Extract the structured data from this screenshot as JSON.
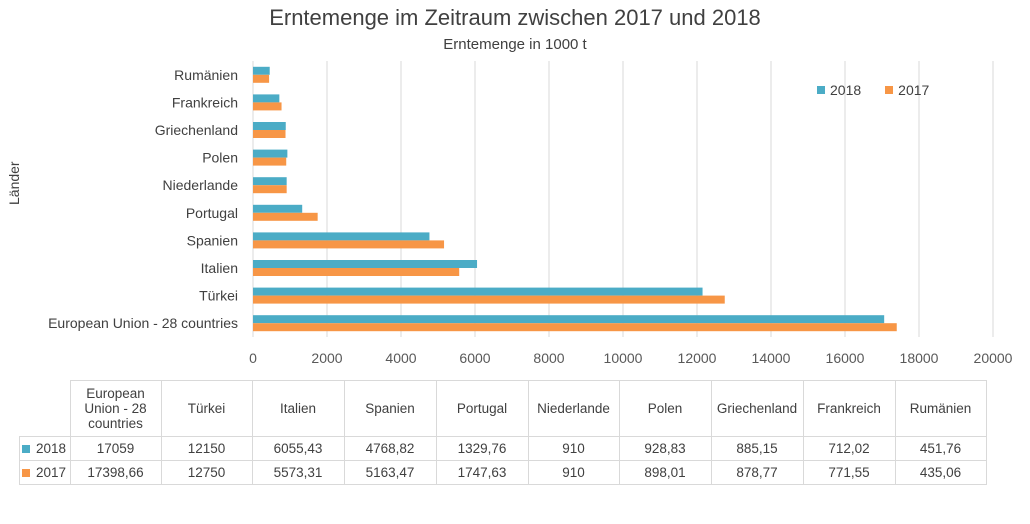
{
  "chart_data": {
    "type": "bar",
    "orientation": "horizontal",
    "title": "Erntemenge im Zeitraum zwischen 2017 und 2018",
    "subtitle": "Erntemenge in 1000 t",
    "ylabel": "Länder",
    "categories": [
      "European Union - 28 countries",
      "Türkei",
      "Italien",
      "Spanien",
      "Portugal",
      "Niederlande",
      "Polen",
      "Griechenland",
      "Frankreich",
      "Rumänien"
    ],
    "table_headers": [
      "European Union - 28 countries",
      "Türkei",
      "Italien",
      "Spanien",
      "Portugal",
      "Niederlande",
      "Polen",
      "Griechenland",
      "Frankreich",
      "Rumänien"
    ],
    "series": [
      {
        "name": "2018",
        "color": "#4bacc6",
        "values": [
          17059,
          12150,
          6055.43,
          4768.82,
          1329.76,
          910,
          928.83,
          885.15,
          712.02,
          451.76
        ],
        "value_labels": [
          "17059",
          "12150",
          "6055,43",
          "4768,82",
          "1329,76",
          "910",
          "928,83",
          "885,15",
          "712,02",
          "451,76"
        ]
      },
      {
        "name": "2017",
        "color": "#f79646",
        "values": [
          17398.66,
          12750,
          5573.31,
          5163.47,
          1747.63,
          910,
          898.01,
          878.77,
          771.55,
          435.06
        ],
        "value_labels": [
          "17398,66",
          "12750",
          "5573,31",
          "5163,47",
          "1747,63",
          "910",
          "898,01",
          "878,77",
          "771,55",
          "435,06"
        ]
      }
    ],
    "xlim": [
      0,
      20000
    ],
    "xticks": [
      "0",
      "2000",
      "4000",
      "6000",
      "8000",
      "10000",
      "12000",
      "14000",
      "16000",
      "18000",
      "20000"
    ],
    "xtick_values": [
      0,
      2000,
      4000,
      6000,
      8000,
      10000,
      12000,
      14000,
      16000,
      18000,
      20000
    ],
    "grid": true,
    "legend_position": "top-right",
    "legend": [
      "2018",
      "2017"
    ]
  }
}
